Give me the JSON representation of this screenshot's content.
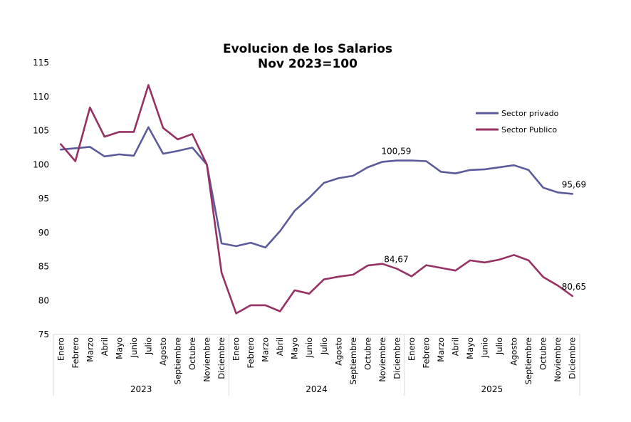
{
  "chart_data": {
    "type": "line",
    "title": "Evolucion de los Salarios",
    "subtitle": "Nov 2023=100",
    "xlabel": "",
    "ylabel": "",
    "ylim": [
      75,
      115
    ],
    "yticks": [
      "75",
      "80",
      "85",
      "90",
      "95",
      "100",
      "105",
      "110",
      "115"
    ],
    "grid": false,
    "legend_position": "top-right",
    "categories": [
      "Enero",
      "Febrero",
      "Marzo",
      "Abril",
      "Mayo",
      "Junio",
      "Julio",
      "Agosto",
      "Septiembre",
      "Octubre",
      "Noviembre",
      "Diciembre",
      "Enero",
      "Febrero",
      "Marzo",
      "Abril",
      "Mayo",
      "Junio",
      "Julio",
      "Agosto",
      "Septiembre",
      "Octubre",
      "Noviembre",
      "Diciembre",
      "Enero",
      "Febrero",
      "Marzo",
      "Abril",
      "Mayo",
      "Junio",
      "Julio",
      "Agosto",
      "Septiembre",
      "Octubre",
      "Noviembre",
      "Diciembre"
    ],
    "groups": [
      {
        "label": "2023",
        "count": 12
      },
      {
        "label": "2024",
        "count": 12
      },
      {
        "label": "2025",
        "count": 12
      }
    ],
    "series": [
      {
        "name": "Sector privado",
        "color": "#5b5b9c",
        "values": [
          102.2,
          102.4,
          102.6,
          101.2,
          101.5,
          101.3,
          105.5,
          101.6,
          102.0,
          102.5,
          100.0,
          88.4,
          88.0,
          88.5,
          87.8,
          90.2,
          93.2,
          95.1,
          97.3,
          98.0,
          98.35,
          99.6,
          100.4,
          100.59,
          100.6,
          100.5,
          98.95,
          98.7,
          99.2,
          99.3,
          99.6,
          99.9,
          99.2,
          96.6,
          95.9,
          95.69
        ]
      },
      {
        "name": "Sector Publico",
        "color": "#953163",
        "values": [
          103.0,
          100.5,
          108.4,
          104.1,
          104.8,
          104.8,
          111.7,
          105.4,
          103.7,
          104.5,
          100.0,
          84.1,
          78.1,
          79.3,
          79.3,
          78.4,
          81.5,
          81.0,
          83.1,
          83.5,
          83.8,
          85.15,
          85.4,
          84.67,
          83.55,
          85.2,
          84.8,
          84.4,
          85.9,
          85.6,
          86.0,
          86.7,
          85.9,
          83.45,
          82.2,
          80.65
        ]
      }
    ],
    "annotations": [
      {
        "series": 0,
        "index": 23,
        "text": "100,59"
      },
      {
        "series": 1,
        "index": 23,
        "text": "84,67"
      },
      {
        "series": 0,
        "index": 35,
        "text": "95,69"
      },
      {
        "series": 1,
        "index": 35,
        "text": "80,65"
      }
    ]
  }
}
